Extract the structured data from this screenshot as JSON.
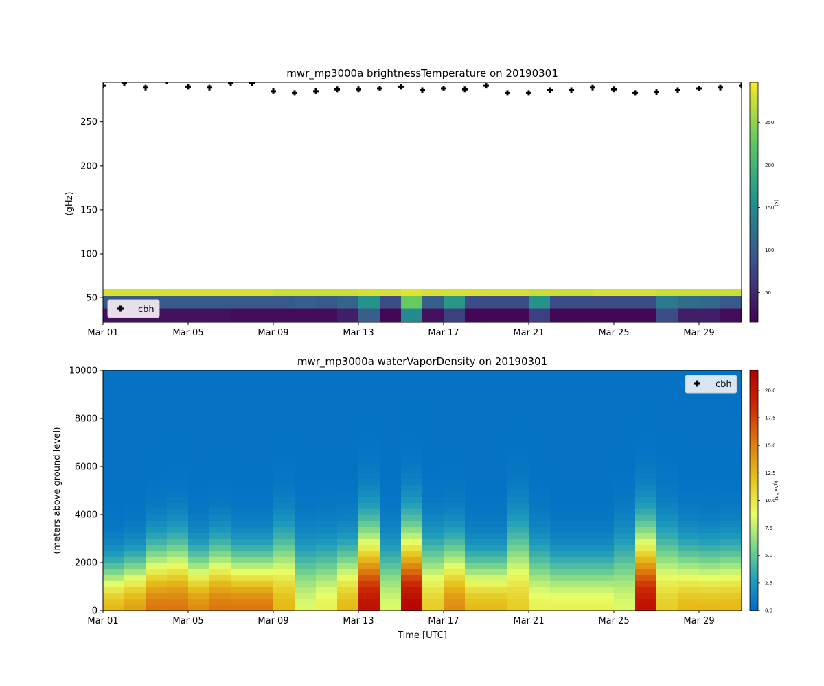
{
  "chart_data": [
    {
      "type": "heatmap",
      "title": "mwr_mp3000a brightnessTemperature on 20190301",
      "xlabel": "",
      "ylabel": "(gHz)",
      "colorbar_label": "(K)",
      "colormap": "viridis",
      "xlim": [
        "2019-03-01",
        "2019-03-31"
      ],
      "ylim": [
        22,
        295
      ],
      "x_ticks": [
        "Mar 01",
        "Mar 05",
        "Mar 09",
        "Mar 13",
        "Mar 17",
        "Mar 21",
        "Mar 25",
        "Mar 29"
      ],
      "y_ticks": [
        50,
        100,
        150,
        200,
        250
      ],
      "colorbar_ticks": [
        50,
        100,
        150,
        200,
        250
      ],
      "colorbar_range": [
        15,
        297
      ],
      "days": [
        "Mar 01",
        "Mar 02",
        "Mar 03",
        "Mar 04",
        "Mar 05",
        "Mar 06",
        "Mar 07",
        "Mar 08",
        "Mar 09",
        "Mar 10",
        "Mar 11",
        "Mar 12",
        "Mar 13",
        "Mar 14",
        "Mar 15",
        "Mar 16",
        "Mar 17",
        "Mar 18",
        "Mar 19",
        "Mar 20",
        "Mar 21",
        "Mar 22",
        "Mar 23",
        "Mar 24",
        "Mar 25",
        "Mar 26",
        "Mar 27",
        "Mar 28",
        "Mar 29",
        "Mar 30"
      ],
      "bands": [
        {
          "range": [
            22,
            38
          ],
          "values": [
            30,
            30,
            30,
            30,
            30,
            30,
            25,
            25,
            25,
            25,
            25,
            40,
            100,
            20,
            150,
            30,
            70,
            20,
            20,
            20,
            70,
            20,
            20,
            20,
            20,
            20,
            80,
            40,
            40,
            25
          ]
        },
        {
          "range": [
            38,
            52
          ],
          "values": [
            95,
            95,
            95,
            95,
            95,
            95,
            95,
            95,
            95,
            100,
            95,
            105,
            160,
            80,
            230,
            100,
            165,
            80,
            80,
            80,
            160,
            80,
            80,
            80,
            80,
            80,
            130,
            115,
            110,
            95
          ]
        },
        {
          "range": [
            52,
            60
          ],
          "values": [
            280,
            280,
            280,
            280,
            280,
            280,
            280,
            280,
            275,
            275,
            275,
            275,
            280,
            280,
            285,
            280,
            280,
            280,
            280,
            280,
            275,
            275,
            275,
            280,
            280,
            280,
            275,
            275,
            275,
            275
          ]
        }
      ],
      "legend": {
        "entries": [
          "cbh"
        ],
        "placement": "lower-left"
      },
      "series": [
        {
          "name": "cbh",
          "marker": "plus",
          "color": "#000000",
          "values": [
            291,
            294,
            289,
            296,
            290,
            289,
            294,
            294,
            285,
            283,
            285,
            287,
            287,
            288,
            290,
            286,
            288,
            287,
            291,
            283,
            283,
            286,
            286,
            289,
            287,
            283,
            284,
            286,
            288,
            289,
            291
          ]
        }
      ]
    },
    {
      "type": "heatmap",
      "title": "mwr_mp3000a waterVaporDensity on 20190301",
      "xlabel": "Time [UTC]",
      "ylabel": "(meters above ground level)",
      "colorbar_label": "(g/m^3)",
      "colormap": "blue-green-yellow-red",
      "xlim": [
        "2019-03-01",
        "2019-03-31"
      ],
      "ylim": [
        0,
        10000
      ],
      "x_ticks": [
        "Mar 01",
        "Mar 05",
        "Mar 09",
        "Mar 13",
        "Mar 17",
        "Mar 21",
        "Mar 25",
        "Mar 29"
      ],
      "y_ticks": [
        0,
        2000,
        4000,
        6000,
        8000,
        10000
      ],
      "colorbar_ticks": [
        0.0,
        2.5,
        5.0,
        7.5,
        10.0,
        12.5,
        15.0,
        17.5,
        20.0
      ],
      "colorbar_range": [
        0,
        21.8
      ],
      "days": [
        "Mar 01",
        "Mar 02",
        "Mar 03",
        "Mar 04",
        "Mar 05",
        "Mar 06",
        "Mar 07",
        "Mar 08",
        "Mar 09",
        "Mar 10",
        "Mar 11",
        "Mar 12",
        "Mar 13",
        "Mar 14",
        "Mar 15",
        "Mar 16",
        "Mar 17",
        "Mar 18",
        "Mar 19",
        "Mar 20",
        "Mar 21",
        "Mar 22",
        "Mar 23",
        "Mar 24",
        "Mar 25",
        "Mar 26",
        "Mar 27",
        "Mar 28",
        "Mar 29",
        "Mar 30"
      ],
      "surface_density": [
        12,
        13,
        15,
        15,
        14,
        15,
        15,
        15,
        12,
        8,
        9,
        12,
        20,
        8,
        21,
        11,
        14,
        12,
        12,
        11,
        9,
        9,
        9,
        9,
        8,
        20,
        11,
        12,
        12,
        12
      ],
      "moist_layer_height_m": [
        2300,
        2500,
        3000,
        3200,
        2700,
        3000,
        2700,
        2700,
        3500,
        3000,
        3000,
        3000,
        3800,
        3000,
        3800,
        3200,
        3200,
        2600,
        2600,
        3800,
        3000,
        2600,
        2600,
        2600,
        3300,
        3800,
        3500,
        3000,
        2900,
        3000
      ],
      "legend": {
        "entries": [
          "cbh"
        ],
        "placement": "upper-right"
      },
      "series": [
        {
          "name": "cbh",
          "values": []
        }
      ]
    }
  ]
}
